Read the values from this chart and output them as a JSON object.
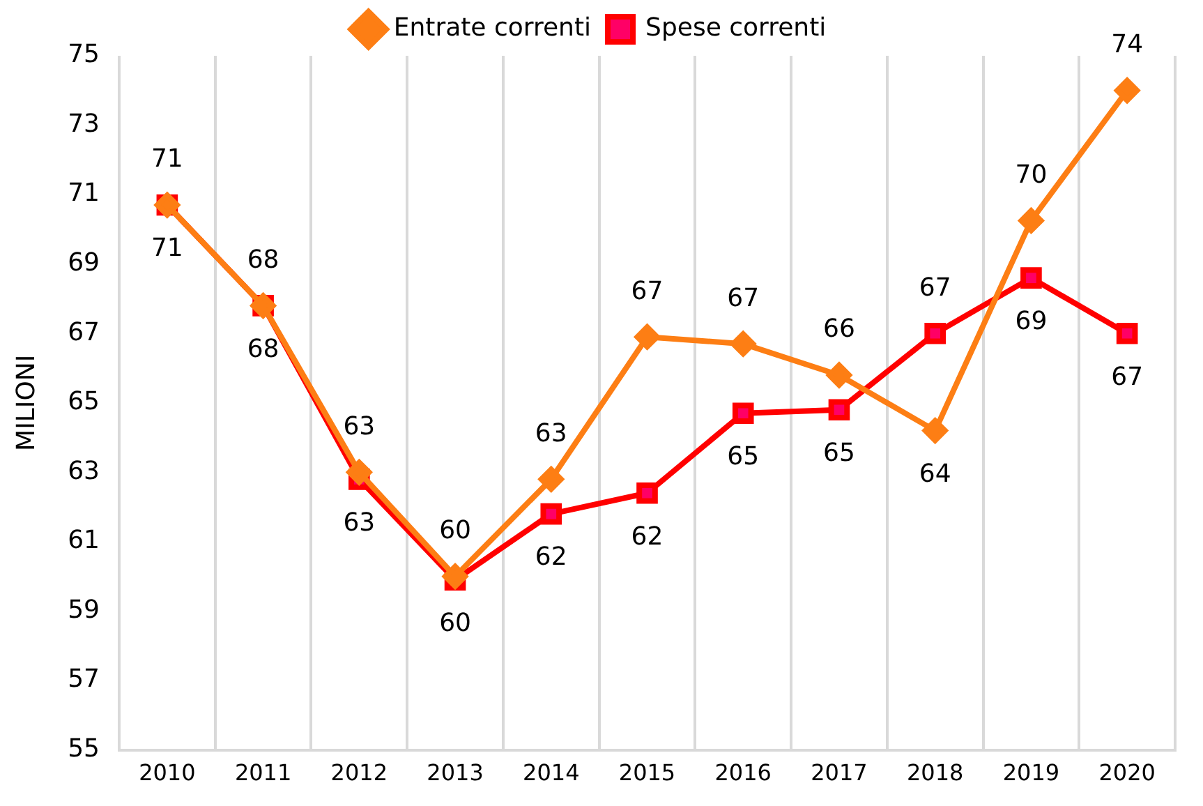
{
  "chart_data": {
    "type": "line",
    "ylabel": "MILIONI",
    "categories": [
      "2010",
      "2011",
      "2012",
      "2013",
      "2014",
      "2015",
      "2016",
      "2017",
      "2018",
      "2019",
      "2020"
    ],
    "series": [
      {
        "name": "Entrate correnti",
        "color": "#fd7e14",
        "marker": "diamond",
        "values": [
          70.7,
          67.8,
          63.0,
          60.0,
          62.8,
          66.9,
          66.7,
          65.8,
          64.2,
          70.25,
          74.0
        ],
        "value_labels": [
          "71",
          "68",
          "63",
          "60",
          "63",
          "67",
          "67",
          "66",
          "64",
          "70",
          "74"
        ]
      },
      {
        "name": "Spese correnti",
        "color": "#ff0000",
        "marker": "square",
        "values": [
          70.7,
          67.8,
          62.8,
          59.9,
          61.8,
          62.4,
          64.7,
          64.8,
          67.0,
          68.6,
          67.0
        ],
        "value_labels": [
          "71",
          "68",
          "63",
          "60",
          "62",
          "62",
          "65",
          "65",
          "67",
          "69",
          "67"
        ]
      }
    ],
    "ylim": [
      55,
      75
    ],
    "yticks": [
      55,
      57,
      59,
      61,
      63,
      65,
      67,
      69,
      71,
      73,
      75
    ],
    "grid": "x",
    "legend": "top"
  }
}
